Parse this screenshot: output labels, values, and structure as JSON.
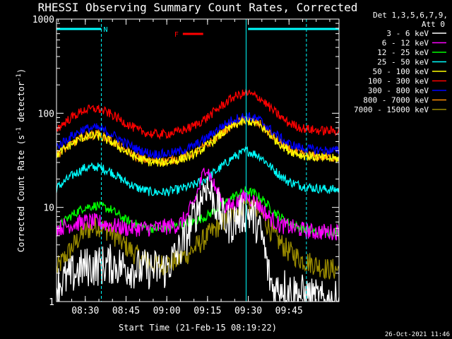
{
  "chart_data": {
    "type": "line",
    "title": "RHESSI Observing Summary Count Rates, Corrected",
    "xlabel": "Start Time (21-Feb-15 08:19:22)",
    "ylabel_prefix": "Corrected Count Rate (s",
    "ylabel_exp1": "-1",
    "ylabel_mid": " detector",
    "ylabel_exp2": "-1",
    "ylabel_suffix": ")",
    "yscale": "log",
    "ylim": [
      1,
      1000
    ],
    "xlim_minutes": [
      0,
      104
    ],
    "x_ticks": [
      {
        "minute": 10.6,
        "label": "08:30"
      },
      {
        "minute": 25.6,
        "label": "08:45"
      },
      {
        "minute": 40.6,
        "label": "09:00"
      },
      {
        "minute": 55.6,
        "label": "09:15"
      },
      {
        "minute": 70.6,
        "label": "09:30"
      },
      {
        "minute": 85.6,
        "label": "09:45"
      }
    ],
    "y_ticks": [
      {
        "value": 1,
        "label": "1"
      },
      {
        "value": 10,
        "label": "10"
      },
      {
        "value": 100,
        "label": "100"
      },
      {
        "value": 1000,
        "label": "1000"
      }
    ],
    "legend_header": [
      "Det 1,3,5,6,7,9,",
      "Att 0"
    ],
    "legend_position": "right",
    "series": [
      {
        "name": "3 - 6 keV",
        "color": "#ffffff",
        "x": [
          0,
          10,
          20,
          30,
          40,
          45,
          48,
          52,
          55,
          58,
          61,
          64,
          67,
          70,
          73,
          76,
          78,
          80,
          83,
          86,
          90,
          94,
          98,
          104
        ],
        "y": [
          1.5,
          2.3,
          2.5,
          2.2,
          2.2,
          3.4,
          5.0,
          10.0,
          18.0,
          12.0,
          7.8,
          6.5,
          8.0,
          9.0,
          7.5,
          4.5,
          2.0,
          1.3,
          1.5,
          1.3,
          1.2,
          1.1,
          1.0,
          1.0
        ]
      },
      {
        "name": "6 - 12 keV",
        "color": "#ff00ff",
        "x": [
          0,
          5,
          10,
          15,
          20,
          25,
          30,
          35,
          40,
          45,
          48,
          51,
          53,
          55,
          58,
          62,
          66,
          70,
          74,
          78,
          82,
          88,
          94,
          100,
          104
        ],
        "y": [
          6.0,
          6.5,
          7.0,
          7.0,
          6.5,
          6.0,
          6.0,
          6.0,
          6.2,
          6.5,
          8.0,
          12.0,
          18.0,
          28.0,
          17.0,
          10.0,
          11.0,
          13.0,
          11.0,
          8.0,
          6.5,
          6.0,
          5.5,
          5.5,
          5.5
        ]
      },
      {
        "name": "12 - 25 keV",
        "color": "#00ff00",
        "x": [
          0,
          5,
          10,
          15,
          20,
          25,
          30,
          35,
          40,
          45,
          50,
          55,
          60,
          65,
          70,
          73,
          76,
          80,
          85,
          90,
          95,
          100,
          104
        ],
        "y": [
          6.0,
          8.0,
          10.0,
          10.5,
          9.5,
          7.5,
          6.5,
          6.0,
          6.0,
          6.5,
          7.0,
          8.0,
          10.0,
          13.0,
          15.0,
          14.0,
          12.0,
          9.0,
          7.0,
          6.0,
          5.5,
          5.5,
          5.5
        ]
      },
      {
        "name": "25 - 50 keV",
        "color": "#00ffff",
        "x": [
          0,
          5,
          10,
          15,
          20,
          25,
          30,
          35,
          40,
          45,
          50,
          55,
          60,
          65,
          70,
          75,
          80,
          85,
          90,
          95,
          100,
          104
        ],
        "y": [
          16.0,
          21.0,
          26.0,
          27.0,
          24.0,
          19.0,
          16.0,
          14.5,
          14.5,
          15.5,
          17.0,
          20.0,
          26.0,
          34.0,
          40.0,
          35.0,
          25.0,
          19.0,
          17.0,
          16.0,
          15.5,
          15.5
        ]
      },
      {
        "name": "50 - 100 keV",
        "color": "#ffff00",
        "x": [
          0,
          5,
          10,
          15,
          20,
          25,
          30,
          35,
          40,
          45,
          50,
          55,
          60,
          65,
          70,
          75,
          80,
          85,
          90,
          95,
          100,
          104
        ],
        "y": [
          36.0,
          46.0,
          56.0,
          58.0,
          50.0,
          40.0,
          33.0,
          30.0,
          30.0,
          32.0,
          36.0,
          44.0,
          58.0,
          74.0,
          84.0,
          74.0,
          54.0,
          41.0,
          36.0,
          34.0,
          33.0,
          33.0
        ]
      },
      {
        "name": "100 - 300 keV",
        "color": "#ff0000",
        "x": [
          0,
          5,
          10,
          15,
          20,
          25,
          30,
          35,
          40,
          45,
          50,
          55,
          60,
          65,
          70,
          75,
          80,
          85,
          90,
          95,
          100,
          104
        ],
        "y": [
          68.0,
          88.0,
          108.0,
          112.0,
          98.0,
          80.0,
          66.0,
          60.0,
          60.0,
          64.0,
          72.0,
          88.0,
          115.0,
          148.0,
          165.0,
          145.0,
          105.0,
          80.0,
          70.0,
          66.0,
          65.0,
          65.0
        ]
      },
      {
        "name": "300 - 800 keV",
        "color": "#0000ff",
        "x": [
          0,
          5,
          10,
          15,
          20,
          25,
          30,
          35,
          40,
          45,
          50,
          55,
          60,
          65,
          70,
          75,
          80,
          85,
          90,
          95,
          100,
          104
        ],
        "y": [
          44.0,
          56.0,
          68.0,
          70.0,
          61.0,
          49.0,
          41.0,
          37.0,
          37.0,
          39.0,
          44.0,
          54.0,
          70.0,
          86.0,
          94.0,
          84.0,
          62.0,
          48.0,
          43.0,
          41.0,
          40.0,
          40.0
        ]
      },
      {
        "name": "800 - 7000 keV",
        "color": "#ff8c00",
        "x": [
          0,
          5,
          10,
          15,
          20,
          25,
          30,
          35,
          40,
          45,
          50,
          55,
          60,
          65,
          70,
          75,
          80,
          85,
          90,
          95,
          100,
          104
        ],
        "y": [
          36.0,
          46.0,
          57.0,
          60.0,
          52.0,
          41.0,
          34.0,
          31.0,
          31.0,
          33.0,
          37.0,
          45.0,
          59.0,
          76.0,
          86.0,
          76.0,
          55.0,
          42.0,
          37.0,
          35.0,
          34.0,
          34.0
        ]
      },
      {
        "name": "7000 - 15000 keV",
        "color": "#9b8c00",
        "x": [
          0,
          5,
          10,
          15,
          20,
          25,
          30,
          35,
          40,
          45,
          50,
          55,
          60,
          65,
          70,
          75,
          80,
          85,
          90,
          95,
          100,
          104
        ],
        "y": [
          2.2,
          3.5,
          5.5,
          6.5,
          5.5,
          4.0,
          3.0,
          2.5,
          2.5,
          2.8,
          3.5,
          4.8,
          6.5,
          8.5,
          11.5,
          9.0,
          5.0,
          3.5,
          2.8,
          2.5,
          2.2,
          2.2
        ]
      }
    ],
    "flags": [
      {
        "label": "N",
        "color": "#00ffff",
        "start_minute": 0,
        "end_minute": 16.5,
        "label_at_end": true
      },
      {
        "label": "",
        "color": "#00ffff",
        "start_minute": 70.5,
        "end_minute": 104
      },
      {
        "label": "F",
        "color": "#ff0000",
        "start_minute": 46.5,
        "end_minute": 54
      }
    ],
    "vlines": [
      {
        "minute": 16.5,
        "color": "#00ffff",
        "style": "dashed"
      },
      {
        "minute": 69.8,
        "color": "#00ffff",
        "style": "solid"
      },
      {
        "minute": 92.0,
        "color": "#00ffff",
        "style": "dashed"
      }
    ],
    "timestamp": "26-Oct-2021 11:46"
  }
}
